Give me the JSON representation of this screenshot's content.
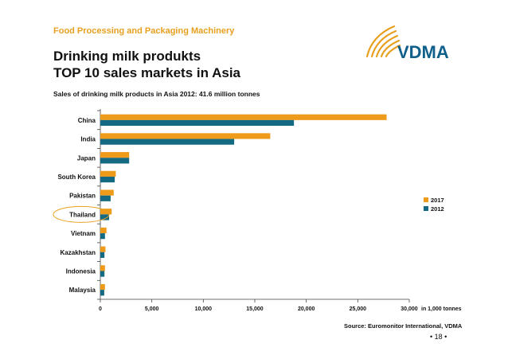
{
  "header": {
    "supertitle": "Food Processing and Packaging Machinery",
    "title_line1": "Drinking milk produkts",
    "title_line2": "TOP 10 sales markets in Asia",
    "subtitle": "Sales of drinking milk products in Asia 2012: 41.6 million tonnes"
  },
  "logo": {
    "text": "VDMA",
    "color": "#0e5f8a",
    "accent": "#e8a020"
  },
  "footer": {
    "source": "Source: Euromonitor International, VDMA",
    "page": "• 18 •"
  },
  "colors": {
    "series_2017": "#ee9a1a",
    "series_2012": "#146a82",
    "highlight": "#e8a020"
  },
  "chart_data": {
    "type": "bar",
    "orientation": "horizontal",
    "categories": [
      "China",
      "India",
      "Japan",
      "South Korea",
      "Pakistan",
      "Thailand",
      "Vietnam",
      "Kazakhstan",
      "Indonesia",
      "Malaysia"
    ],
    "series": [
      {
        "name": "2017",
        "values": [
          27800,
          16500,
          2800,
          1500,
          1300,
          1100,
          600,
          500,
          450,
          450
        ]
      },
      {
        "name": "2012",
        "values": [
          18800,
          13000,
          2800,
          1400,
          1000,
          850,
          450,
          400,
          400,
          380
        ]
      }
    ],
    "xlim": [
      0,
      30000
    ],
    "xticks": [
      "0",
      "5,000",
      "10,000",
      "15,000",
      "20,000",
      "25,000",
      "30,000"
    ],
    "xtick_values": [
      0,
      5000,
      10000,
      15000,
      20000,
      25000,
      30000
    ],
    "unit_label": "in 1,000 tonnes",
    "legend_position": "right",
    "highlighted_category": "Thailand",
    "grid": false
  }
}
